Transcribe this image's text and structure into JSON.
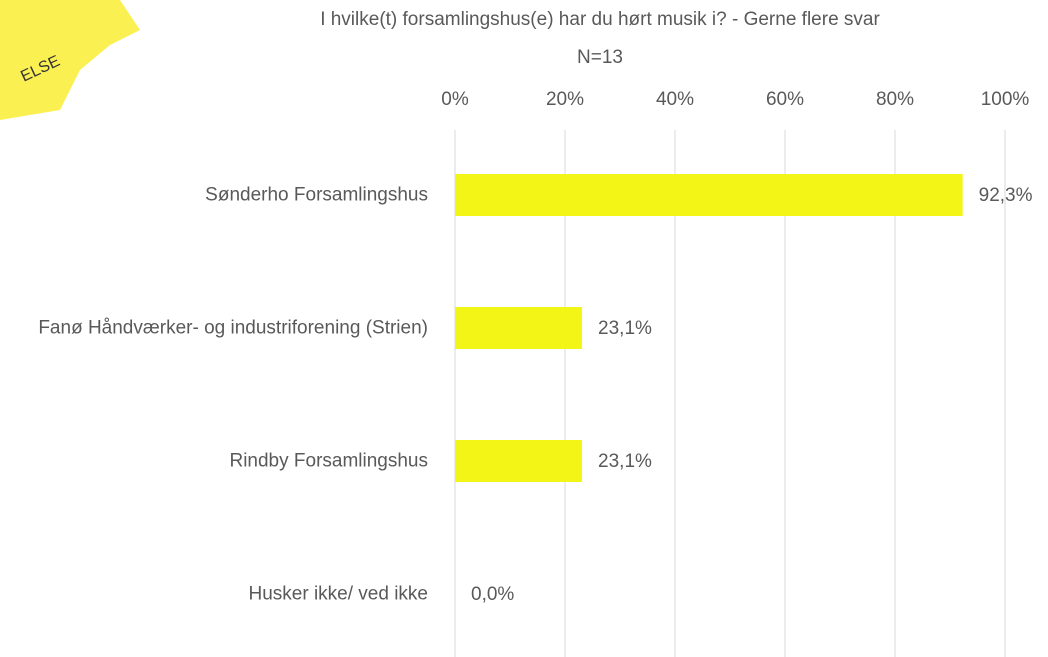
{
  "annotation": "ELSE",
  "chart_data": {
    "type": "bar",
    "orientation": "horizontal",
    "title": "I hvilke(t) forsamlingshus(e) har du hørt musik i? - Gerne flere svar",
    "subtitle": "N=13",
    "categories": [
      "Sønderho Forsamlingshus",
      "Fanø Håndværker- og industriforening (Strien)",
      "Rindby Forsamlingshus",
      "Husker ikke/ ved ikke"
    ],
    "values": [
      92.3,
      23.1,
      23.1,
      0.0
    ],
    "value_labels": [
      "92,3%",
      "23,1%",
      "23,1%",
      "0,0%"
    ],
    "color": "#f2f516",
    "xlim": [
      0,
      100
    ],
    "xticks": [
      {
        "value": 0,
        "label": "0%"
      },
      {
        "value": 20,
        "label": "20%"
      },
      {
        "value": 40,
        "label": "40%"
      },
      {
        "value": 60,
        "label": "60%"
      },
      {
        "value": 80,
        "label": "80%"
      },
      {
        "value": 100,
        "label": "100%"
      }
    ],
    "grid": true
  }
}
